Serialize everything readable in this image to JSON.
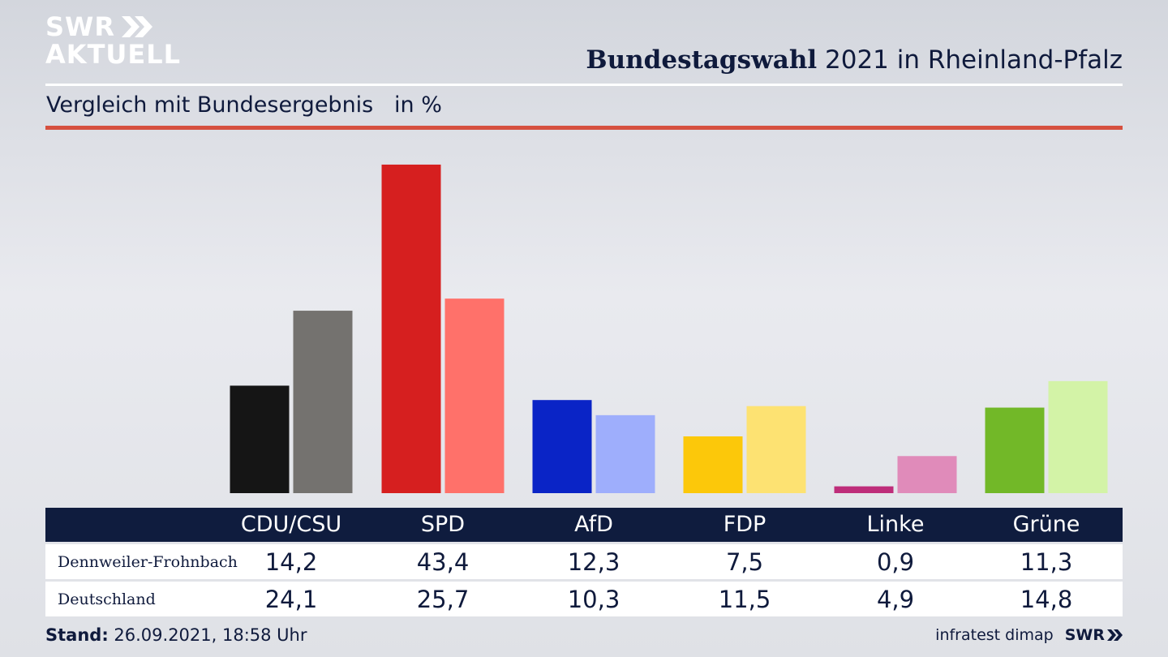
{
  "brand": {
    "line1": "SWR",
    "line2": "AKTUELL",
    "icon": "double-chevron-icon"
  },
  "header": {
    "title_bold": "Bundestagswahl",
    "title_rest": " 2021 in Rheinland-Pfalz"
  },
  "subheader": {
    "text": "Vergleich mit Bundesergebnis   in %"
  },
  "chart_data": {
    "type": "bar",
    "title": "Bundestagswahl 2021 in Rheinland-Pfalz",
    "subtitle": "Vergleich mit Bundesergebnis   in %",
    "xlabel": "",
    "ylabel": "",
    "categories": [
      "CDU/CSU",
      "SPD",
      "AfD",
      "FDP",
      "Linke",
      "Grüne"
    ],
    "series": [
      {
        "name": "Dennweiler-Frohnbach",
        "values": [
          14.2,
          43.4,
          12.3,
          7.5,
          0.9,
          11.3
        ],
        "colors": [
          "#151515",
          "#d61f1f",
          "#0a24c6",
          "#fcc80a",
          "#be2d7a",
          "#72b828"
        ]
      },
      {
        "name": "Deutschland",
        "values": [
          24.1,
          25.7,
          10.3,
          11.5,
          4.9,
          14.8
        ],
        "colors": [
          "#74726f",
          "#ff716a",
          "#9eaefc",
          "#fde272",
          "#e08bba",
          "#d3f3a7"
        ]
      }
    ],
    "value_labels": [
      [
        "14,2",
        "43,4",
        "12,3",
        "7,5",
        "0,9",
        "11,3"
      ],
      [
        "24,1",
        "25,7",
        "10,3",
        "11,5",
        "4,9",
        "14,8"
      ]
    ],
    "ylim": [
      0,
      45
    ],
    "grid": false,
    "legend": "table-below"
  },
  "footer": {
    "stand_label": "Stand:",
    "stand_value": " 26.09.2021, 18:58 Uhr",
    "source": "infratest dimap",
    "brand": "SWR"
  }
}
